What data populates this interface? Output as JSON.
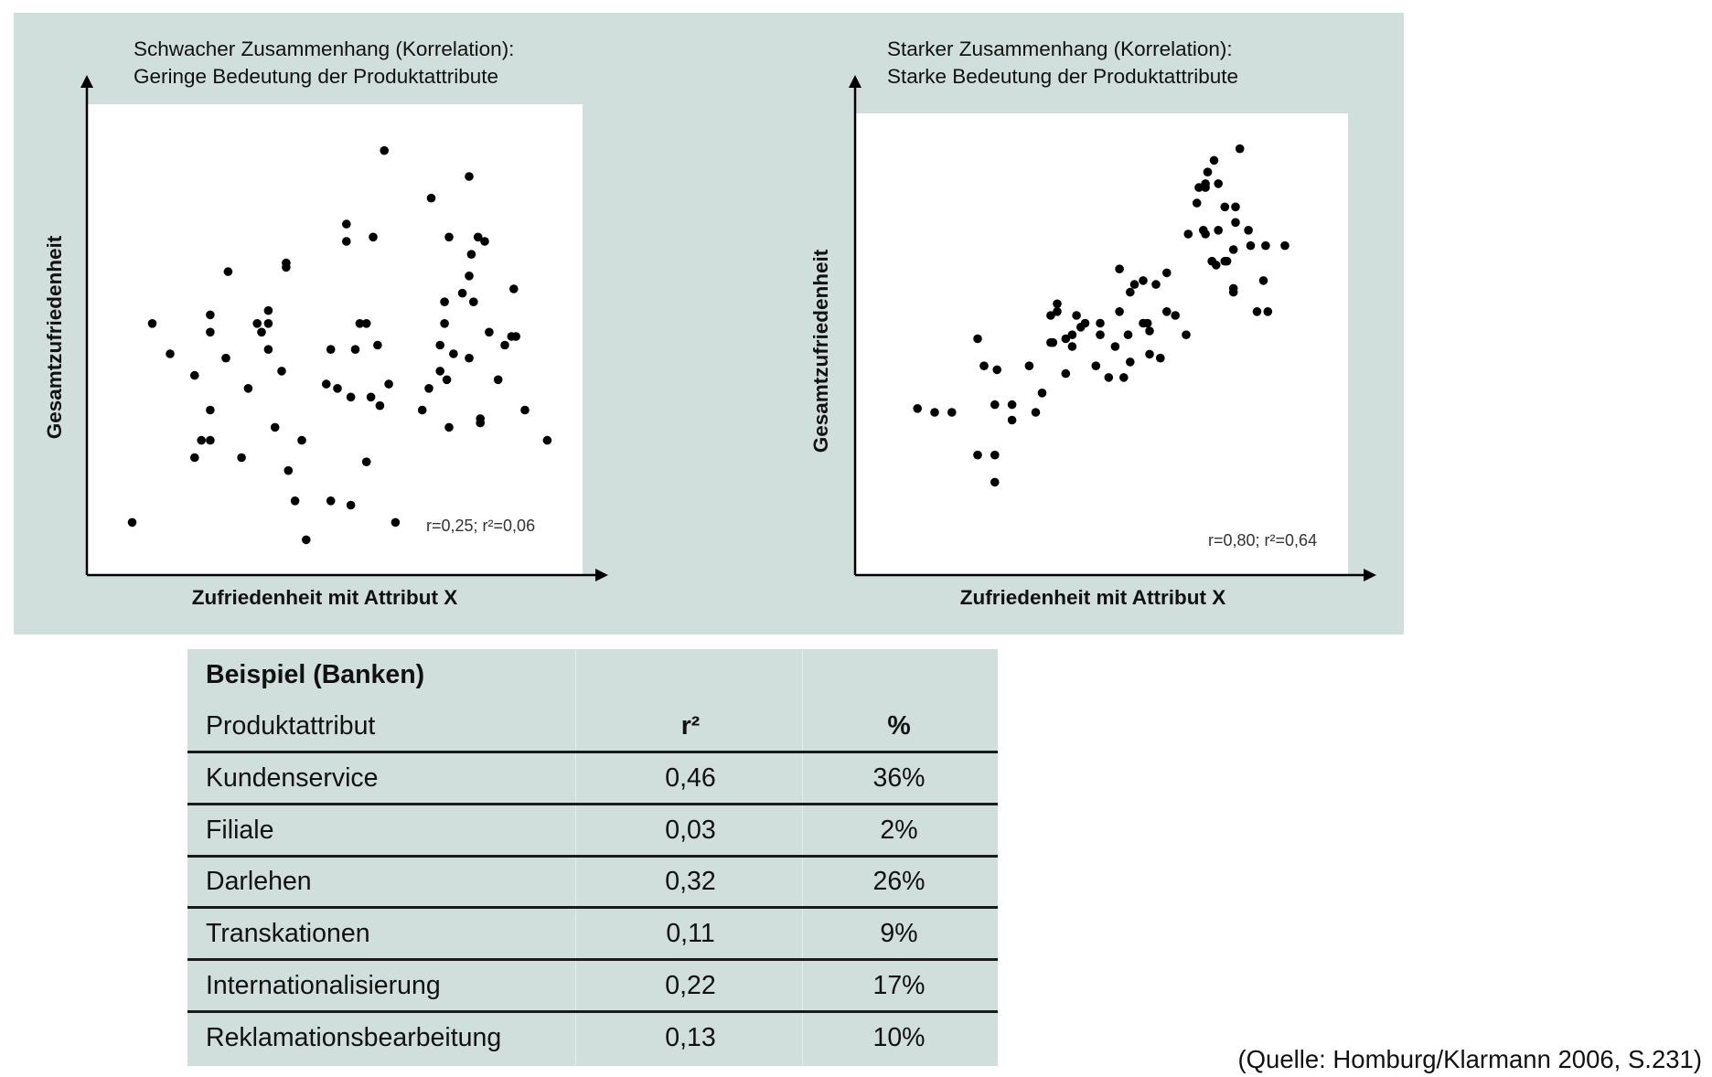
{
  "chart_data": [
    {
      "type": "scatter",
      "title": "Schwacher Zusammenhang (Korrelation):",
      "subtitle": "Geringe Bedeutung der Produktattribute",
      "xlabel": "Zufriedenheit mit Attribut X",
      "ylabel": "Gesamtzufriedenheit",
      "annotation": "r=0,25; r²=0,06",
      "xlim": [
        0,
        100
      ],
      "ylim": [
        0,
        100
      ],
      "points": [
        [
          4,
          9
        ],
        [
          8.5,
          55
        ],
        [
          12.5,
          48
        ],
        [
          18,
          43
        ],
        [
          19.5,
          28
        ],
        [
          18,
          24
        ],
        [
          21.5,
          28
        ],
        [
          21.5,
          35
        ],
        [
          21.5,
          53
        ],
        [
          21.5,
          57
        ],
        [
          25,
          47
        ],
        [
          25.5,
          67
        ],
        [
          28.5,
          24
        ],
        [
          30,
          40
        ],
        [
          32,
          55
        ],
        [
          33,
          53
        ],
        [
          34.5,
          49
        ],
        [
          34.5,
          55
        ],
        [
          34.5,
          58
        ],
        [
          36,
          31
        ],
        [
          37.5,
          44
        ],
        [
          38.5,
          68
        ],
        [
          38.5,
          69
        ],
        [
          39,
          21
        ],
        [
          40.5,
          14
        ],
        [
          42,
          28
        ],
        [
          43,
          5
        ],
        [
          47.5,
          41
        ],
        [
          48.5,
          49
        ],
        [
          48.5,
          14
        ],
        [
          50,
          40
        ],
        [
          52,
          74
        ],
        [
          52,
          78
        ],
        [
          53,
          38
        ],
        [
          53,
          13
        ],
        [
          54,
          49
        ],
        [
          55,
          55
        ],
        [
          56.5,
          55
        ],
        [
          56.5,
          23
        ],
        [
          57.5,
          38
        ],
        [
          58,
          75
        ],
        [
          59,
          50
        ],
        [
          59.5,
          36
        ],
        [
          60.5,
          95
        ],
        [
          61.5,
          41
        ],
        [
          63,
          9
        ],
        [
          69,
          35
        ],
        [
          70.5,
          40
        ],
        [
          71,
          84
        ],
        [
          73,
          50
        ],
        [
          73,
          44
        ],
        [
          74,
          55
        ],
        [
          74,
          60
        ],
        [
          74.5,
          42
        ],
        [
          75,
          31
        ],
        [
          75,
          75
        ],
        [
          76,
          48
        ],
        [
          78,
          62
        ],
        [
          79.5,
          47
        ],
        [
          79.5,
          66
        ],
        [
          79.5,
          89
        ],
        [
          80,
          71
        ],
        [
          80.5,
          60
        ],
        [
          81.5,
          75
        ],
        [
          82,
          33
        ],
        [
          82,
          32
        ],
        [
          83,
          74
        ],
        [
          84,
          53
        ],
        [
          86,
          42
        ],
        [
          87.5,
          50
        ],
        [
          89,
          52
        ],
        [
          89.5,
          63
        ],
        [
          90,
          52
        ],
        [
          92,
          35
        ],
        [
          97,
          28
        ]
      ]
    },
    {
      "type": "scatter",
      "title": "Starker Zusammenhang (Korrelation):",
      "subtitle": "Starke Bedeutung der Produktattribute",
      "xlabel": "Zufriedenheit mit Attribut X",
      "ylabel": "Gesamtzufriedenheit",
      "annotation": "r=0,80; r²=0,64",
      "xlim": [
        0,
        100
      ],
      "ylim": [
        0,
        100
      ],
      "points": [
        [
          6,
          30
        ],
        [
          10,
          29
        ],
        [
          14,
          29
        ],
        [
          20,
          48
        ],
        [
          20,
          18
        ],
        [
          21.5,
          41
        ],
        [
          24,
          31
        ],
        [
          24,
          18
        ],
        [
          24,
          11
        ],
        [
          24.5,
          40
        ],
        [
          28,
          27
        ],
        [
          28,
          31
        ],
        [
          32,
          41
        ],
        [
          33.5,
          29
        ],
        [
          35,
          34
        ],
        [
          37,
          47
        ],
        [
          37,
          54
        ],
        [
          37.5,
          47
        ],
        [
          38.5,
          55
        ],
        [
          38.5,
          57
        ],
        [
          40.5,
          48
        ],
        [
          40.5,
          39
        ],
        [
          42,
          49
        ],
        [
          42,
          46
        ],
        [
          43,
          54
        ],
        [
          44,
          51
        ],
        [
          45,
          52
        ],
        [
          47.5,
          41
        ],
        [
          48.5,
          49
        ],
        [
          48.5,
          52
        ],
        [
          50.5,
          38
        ],
        [
          52,
          46
        ],
        [
          53,
          55
        ],
        [
          53,
          66
        ],
        [
          54,
          38
        ],
        [
          55,
          49
        ],
        [
          55.5,
          60
        ],
        [
          55.5,
          42
        ],
        [
          56.5,
          62
        ],
        [
          58.5,
          63
        ],
        [
          58.5,
          52
        ],
        [
          59.5,
          52
        ],
        [
          60,
          44
        ],
        [
          60,
          50
        ],
        [
          61.5,
          62
        ],
        [
          62.5,
          43
        ],
        [
          64,
          55
        ],
        [
          64,
          65
        ],
        [
          66,
          54
        ],
        [
          68.5,
          49
        ],
        [
          69,
          75
        ],
        [
          71,
          83
        ],
        [
          71.5,
          87
        ],
        [
          72.5,
          76
        ],
        [
          73,
          75
        ],
        [
          73,
          87
        ],
        [
          73,
          88
        ],
        [
          73.5,
          91
        ],
        [
          74.5,
          68
        ],
        [
          75,
          94
        ],
        [
          75.5,
          67
        ],
        [
          76,
          88
        ],
        [
          76,
          76
        ],
        [
          77.5,
          68
        ],
        [
          77.5,
          82
        ],
        [
          78,
          68
        ],
        [
          79.5,
          71
        ],
        [
          79.5,
          60
        ],
        [
          79.5,
          61
        ],
        [
          80,
          78
        ],
        [
          80,
          82
        ],
        [
          81,
          97
        ],
        [
          83,
          76
        ],
        [
          83.5,
          72
        ],
        [
          85,
          55
        ],
        [
          86.5,
          63
        ],
        [
          87,
          72
        ],
        [
          87.5,
          55
        ],
        [
          91.5,
          72
        ]
      ]
    }
  ],
  "table": {
    "title": "Beispiel (Banken)",
    "headers": [
      "Produktattribut",
      "r²",
      "%"
    ],
    "rows": [
      [
        "Kundenservice",
        "0,46",
        "36%"
      ],
      [
        "Filiale",
        "0,03",
        "2%"
      ],
      [
        "Darlehen",
        "0,32",
        "26%"
      ],
      [
        "Transkationen",
        "0,11",
        "9%"
      ],
      [
        "Internationalisierung",
        "0,22",
        "17%"
      ],
      [
        "Reklamationsbearbeitung",
        "0,13",
        "10%"
      ]
    ]
  },
  "source": "(Quelle: Homburg/Klarmann 2006, S.231)"
}
